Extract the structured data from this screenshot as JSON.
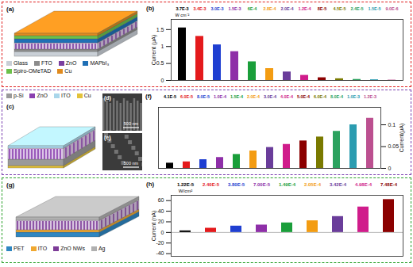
{
  "chart_data": [
    {
      "type": "bar",
      "panel_label": "(b)",
      "y_label": "Current (μA)",
      "intensity_unit": "W cm⁻²",
      "categories": [
        "3.7E-3",
        "3.4E-3",
        "3.0E-3",
        "1.5E-3",
        "6E-4",
        "2.8E-4",
        "2.0E-4",
        "1.2E-4",
        "8E-5",
        "4.5E-5",
        "2.4E-5",
        "1.5E-5",
        "9.0E-6"
      ],
      "values": [
        1.55,
        1.3,
        1.05,
        0.85,
        0.55,
        0.35,
        0.25,
        0.15,
        0.08,
        0.05,
        0.03,
        0.02,
        0.01
      ],
      "colors": [
        "#000000",
        "#e41a1c",
        "#1f3fd1",
        "#8e2fa8",
        "#1a9e3a",
        "#f39c12",
        "#6a3d9a",
        "#d01c8b",
        "#8b0000",
        "#7a7a00",
        "#2ca25f",
        "#2b9cb0",
        "#bc5090"
      ],
      "ylim": [
        0,
        1.8
      ],
      "yticks": [
        0,
        0.5,
        1,
        1.5
      ],
      "tick_labels": "y",
      "grid": false
    },
    {
      "type": "bar",
      "panel_label": "(f)",
      "y_label": "Current(μA)",
      "categories": [
        "4.1E-5",
        "6.0E-5",
        "8.0E-5",
        "1.0E-4",
        "1.5E-4",
        "2.0E-4",
        "3.0E-4",
        "4.0E-4",
        "5.0E-4",
        "6.0E-4",
        "8.0E-4",
        "1.0E-3",
        "1.2E-3"
      ],
      "values": [
        0.012,
        0.015,
        0.02,
        0.025,
        0.032,
        0.04,
        0.048,
        0.055,
        0.063,
        0.072,
        0.085,
        0.1,
        0.115
      ],
      "colors": [
        "#000000",
        "#e41a1c",
        "#1f3fd1",
        "#8e2fa8",
        "#1a9e3a",
        "#f39c12",
        "#6a3d9a",
        "#d01c8b",
        "#8b0000",
        "#7a7a00",
        "#2ca25f",
        "#2b9cb0",
        "#bc5090"
      ],
      "ylim": [
        0,
        0.14
      ],
      "yticks": [
        0,
        0.05,
        0.1
      ],
      "tick_labels": "y",
      "grid": false
    },
    {
      "type": "bar",
      "panel_label": "(h)",
      "y_label": "Current (nA)",
      "intensity_unit": "W/cm²",
      "categories": [
        "1.22E-5",
        "2.40E-5",
        "3.80E-5",
        "7.00E-5",
        "1.49E-4",
        "2.05E-4",
        "3.42E-4",
        "4.98E-4",
        "7.48E-4"
      ],
      "values": [
        3,
        8,
        12,
        14,
        18,
        22,
        30,
        48,
        62
      ],
      "colors": [
        "#000000",
        "#e41a1c",
        "#1f3fd1",
        "#8e2fa8",
        "#1a9e3a",
        "#f39c12",
        "#6a3d9a",
        "#d01c8b",
        "#8b0000"
      ],
      "ylim": [
        -45,
        70
      ],
      "yticks": [
        -40,
        -20,
        0,
        20,
        40,
        60
      ],
      "tick_labels": "y",
      "grid": false
    }
  ],
  "diagrams": {
    "a": {
      "panel_label": "(a)",
      "border_color": "#e02020",
      "layers": [
        {
          "name": "Glass",
          "color": "#c9cfd6"
        },
        {
          "name": "FTO",
          "color": "#8c8c8c"
        },
        {
          "name": "ZnO",
          "color": "#7b3fa0"
        },
        {
          "name": "MAPbI₃",
          "color": "#1f6fb5"
        },
        {
          "name": "Spiro-OMeTAD",
          "color": "#6cc04a"
        },
        {
          "name": "Cu",
          "color": "#e08a1e"
        }
      ]
    },
    "c": {
      "panel_label": "(c)",
      "border_color": "#7a3fb0",
      "layers": [
        {
          "name": "p-Si",
          "color": "#9a9a9a"
        },
        {
          "name": "ZnO",
          "color": "#8a3fb0"
        },
        {
          "name": "ITO",
          "color": "#a9d6ea"
        },
        {
          "name": "Cu",
          "color": "#e3c23a"
        }
      ]
    },
    "g": {
      "panel_label": "(g)",
      "border_color": "#2aa02a",
      "layers": [
        {
          "name": "PET",
          "color": "#2e86c1"
        },
        {
          "name": "ITO",
          "color": "#f0a830"
        },
        {
          "name": "ZnO NWs",
          "color": "#7d3c98"
        },
        {
          "name": "Ag",
          "color": "#b0b0b0"
        }
      ]
    }
  },
  "images": [
    {
      "panel_label": "(d)",
      "scale_bar": "500 nm"
    },
    {
      "panel_label": "(e)",
      "scale_bar": "500 nm"
    }
  ]
}
